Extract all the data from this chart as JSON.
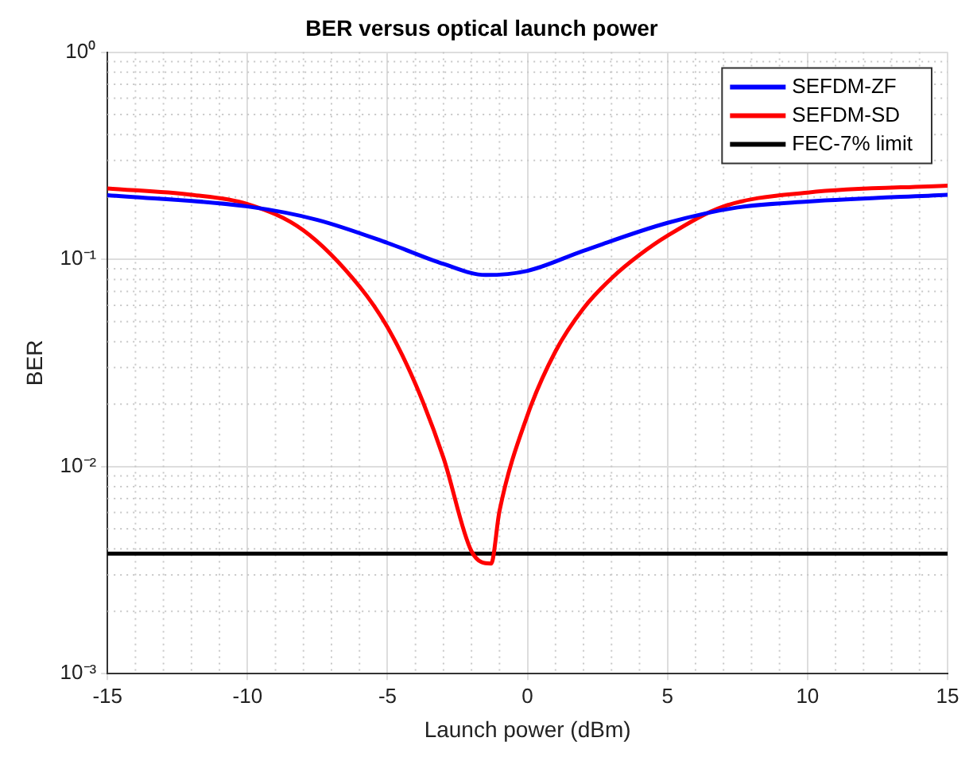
{
  "chart_data": {
    "type": "line",
    "title": "BER versus optical launch power",
    "xlabel": "Launch power (dBm)",
    "ylabel": "BER",
    "log": "y",
    "grid": true,
    "legend": "top right",
    "marker": "none",
    "line_style": "solid",
    "xlim": [
      -15,
      15
    ],
    "xticks": [
      -15,
      -10,
      -5,
      0,
      5,
      10,
      15
    ],
    "ylim": [
      0.001,
      1
    ],
    "yticks": [
      {
        "value": 0.001,
        "label": "10⁻³"
      },
      {
        "value": 0.01,
        "label": "10⁻²"
      },
      {
        "value": 0.1,
        "label": "10⁻¹"
      },
      {
        "value": 1,
        "label": "10⁰"
      }
    ],
    "series": [
      {
        "name": "SEFDM-ZF",
        "color": "#0000ff",
        "x": [
          -15,
          -10,
          -7.5,
          -5,
          -3,
          -1.5,
          0,
          2,
          5,
          7.5,
          10,
          15
        ],
        "values": [
          0.204,
          0.18,
          0.155,
          0.12,
          0.095,
          0.084,
          0.088,
          0.11,
          0.15,
          0.178,
          0.19,
          0.205
        ]
      },
      {
        "name": "SEFDM-SD",
        "color": "#ff0000",
        "x": [
          -15,
          -12,
          -10,
          -8,
          -6,
          -5,
          -4,
          -3,
          -2,
          -1.3,
          -1,
          0,
          1,
          2,
          3,
          4,
          5,
          7,
          10,
          15
        ],
        "values": [
          0.22,
          0.205,
          0.185,
          0.138,
          0.074,
          0.047,
          0.025,
          0.011,
          0.0039,
          0.0034,
          0.0061,
          0.0177,
          0.036,
          0.058,
          0.081,
          0.105,
          0.13,
          0.18,
          0.21,
          0.227
        ]
      },
      {
        "name": "FEC-7% limit",
        "color": "#000000",
        "x": [
          -15,
          15
        ],
        "values": [
          0.0038,
          0.0038
        ]
      }
    ]
  }
}
